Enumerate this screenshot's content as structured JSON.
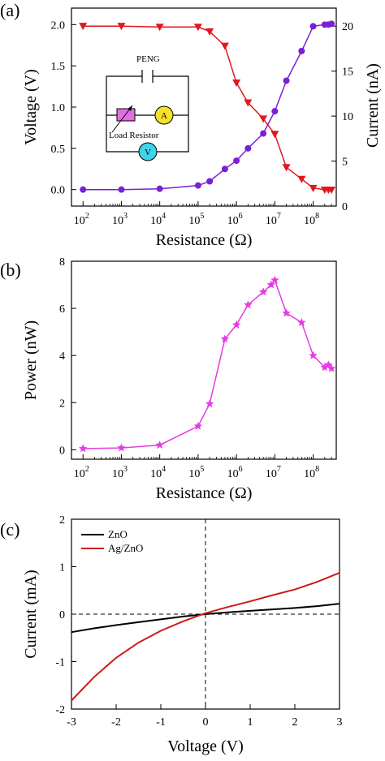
{
  "colors": {
    "voltage": "#7a1fd6",
    "current": "#e0181d",
    "power": "#e43ce4",
    "zno": "#000000",
    "agzno": "#cc1a1a",
    "inset_resistor": "#e070e0",
    "inset_ammeter": "#f5e02a",
    "inset_voltmeter": "#3fd3e8"
  },
  "chart_data": [
    {
      "panel_label": "(a)",
      "type": "line",
      "xlabel": "Resistance (Ω)",
      "xscale": "log",
      "xlim": [
        50,
        400000000
      ],
      "x_ticks": [
        {
          "base": "10",
          "exp": "2"
        },
        {
          "base": "10",
          "exp": "3"
        },
        {
          "base": "10",
          "exp": "4"
        },
        {
          "base": "10",
          "exp": "5"
        },
        {
          "base": "10",
          "exp": "6"
        },
        {
          "base": "10",
          "exp": "7"
        },
        {
          "base": "10",
          "exp": "8"
        }
      ],
      "ylabel_left": "Voltage (V)",
      "ylim_left": [
        -0.2,
        2.2
      ],
      "y_ticks_left": [
        "0.0",
        "0.5",
        "1.0",
        "1.5",
        "2.0"
      ],
      "ylabel_right": "Current (nA)",
      "ylim_right": [
        0,
        22
      ],
      "y_ticks_right": [
        "0",
        "5",
        "10",
        "15",
        "20"
      ],
      "series": [
        {
          "axis": "left",
          "marker": "circle",
          "x": [
            100,
            1000,
            10000,
            100000,
            200000,
            500000,
            1000000,
            2000000,
            5000000,
            10000000,
            20000000,
            50000000,
            100000000,
            200000000,
            250000000,
            300000000
          ],
          "y": [
            0.0,
            0.0,
            0.01,
            0.05,
            0.1,
            0.25,
            0.35,
            0.5,
            0.68,
            0.95,
            1.32,
            1.68,
            1.98,
            2.0,
            2.0,
            2.01
          ]
        },
        {
          "axis": "right",
          "marker": "triangle-down",
          "x": [
            100,
            1000,
            10000,
            100000,
            200000,
            500000,
            1000000,
            2000000,
            5000000,
            10000000,
            20000000,
            50000000,
            100000000,
            200000000,
            250000000,
            300000000
          ],
          "y": [
            20.0,
            20.0,
            19.9,
            19.9,
            19.4,
            17.8,
            13.7,
            11.5,
            9.7,
            8.0,
            4.3,
            3.0,
            2.0,
            1.8,
            1.8,
            1.8
          ]
        }
      ],
      "inset": {
        "labels": {
          "source": "PENG",
          "resistor": "Load  Resistor",
          "ammeter": "A",
          "voltmeter": "V"
        }
      }
    },
    {
      "panel_label": "(b)",
      "type": "line",
      "xlabel": "Resistance (Ω)",
      "xscale": "log",
      "xlim": [
        50,
        400000000
      ],
      "x_ticks": [
        {
          "base": "10",
          "exp": "2"
        },
        {
          "base": "10",
          "exp": "3"
        },
        {
          "base": "10",
          "exp": "4"
        },
        {
          "base": "10",
          "exp": "5"
        },
        {
          "base": "10",
          "exp": "6"
        },
        {
          "base": "10",
          "exp": "7"
        },
        {
          "base": "10",
          "exp": "8"
        }
      ],
      "ylabel": "Power (nW)",
      "ylim": [
        -0.4,
        8
      ],
      "y_ticks": [
        "0",
        "2",
        "4",
        "6",
        "8"
      ],
      "series": [
        {
          "marker": "star",
          "x": [
            100,
            1000,
            10000,
            100000,
            200000,
            500000,
            1000000,
            2000000,
            5000000,
            8000000,
            10000000,
            20000000,
            50000000,
            100000000,
            200000000,
            250000000,
            300000000
          ],
          "y": [
            0.05,
            0.08,
            0.2,
            1.0,
            1.95,
            4.7,
            5.3,
            6.15,
            6.7,
            7.0,
            7.2,
            5.8,
            5.4,
            4.0,
            3.5,
            3.6,
            3.45
          ]
        }
      ]
    },
    {
      "panel_label": "(c)",
      "type": "line",
      "xlabel": "Voltage (V)",
      "xlim": [
        -3,
        3
      ],
      "x_ticks": [
        "-3",
        "-2",
        "-1",
        "0",
        "1",
        "2",
        "3"
      ],
      "ylabel": "Current (mA)",
      "ylim": [
        -2,
        2
      ],
      "y_ticks": [
        "-2",
        "-1",
        "0",
        "1",
        "2"
      ],
      "legend": "top-left",
      "reference_lines": [
        "x = 0 dashed",
        "y = 0 dashed"
      ],
      "series": [
        {
          "name": "ZnO",
          "x": [
            -3,
            -2.5,
            -2,
            -1.5,
            -1,
            -0.5,
            0,
            0.5,
            1,
            1.5,
            2,
            2.5,
            3
          ],
          "y": [
            -0.38,
            -0.3,
            -0.23,
            -0.17,
            -0.11,
            -0.05,
            0.0,
            0.04,
            0.07,
            0.1,
            0.13,
            0.17,
            0.22
          ]
        },
        {
          "name": "Ag/ZnO",
          "x": [
            -3,
            -2.5,
            -2,
            -1.5,
            -1,
            -0.5,
            0,
            0.5,
            1,
            1.5,
            2,
            2.5,
            3
          ],
          "y": [
            -1.82,
            -1.33,
            -0.92,
            -0.6,
            -0.35,
            -0.15,
            0.02,
            0.15,
            0.27,
            0.4,
            0.52,
            0.68,
            0.87
          ]
        }
      ]
    }
  ]
}
